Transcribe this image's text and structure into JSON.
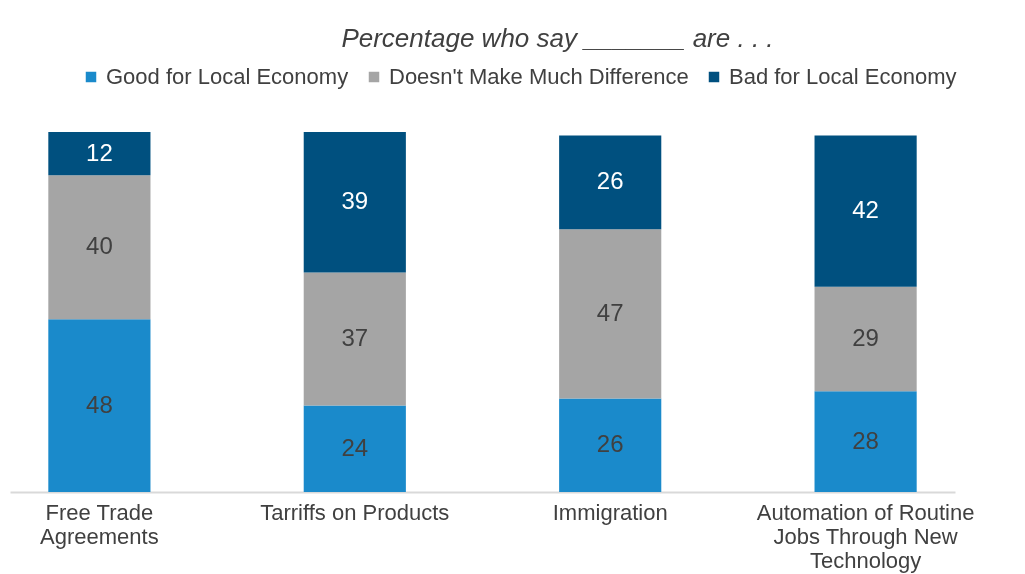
{
  "chart_data": {
    "type": "bar",
    "title": "Percentage who say _______ are . . .",
    "stacked": true,
    "data_labels": true,
    "legend": "top",
    "grid": false,
    "categories": [
      "Free Trade Agreements",
      "Tarriffs on Products",
      "Immigration",
      "Automation of Routine Jobs Through New Technology"
    ],
    "series": [
      {
        "name": "Good for Local Economy",
        "color": "#1a8acb",
        "values": [
          48,
          24,
          26,
          28
        ]
      },
      {
        "name": "Doesn't Make Much Difference",
        "color": "#a5a5a5",
        "values": [
          40,
          37,
          47,
          29
        ]
      },
      {
        "name": "Bad for Local Economy",
        "color": "#00507f",
        "values": [
          12,
          39,
          26,
          42
        ]
      }
    ]
  }
}
